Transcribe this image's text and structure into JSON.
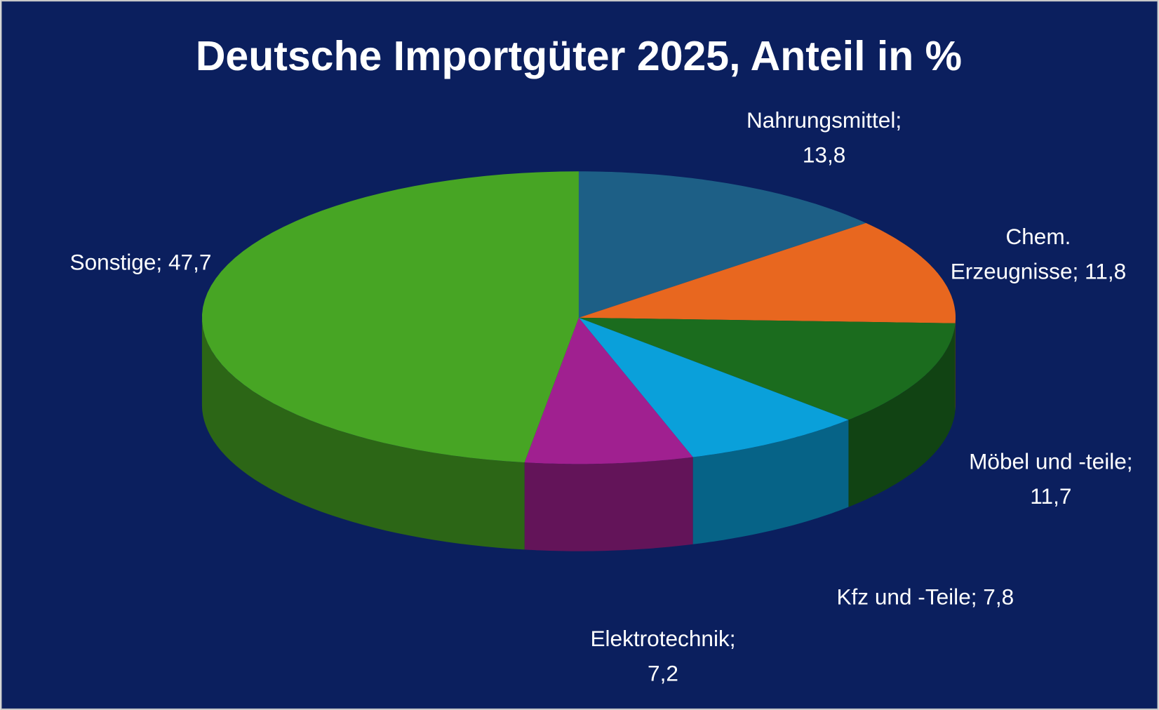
{
  "chart_data": {
    "type": "pie3d",
    "title": "Deutsche Importgüter 2025, Anteil in %",
    "values": [
      13.8,
      11.8,
      11.7,
      7.8,
      7.2,
      47.7
    ],
    "value_labels": [
      "Nahrungsmittel; 13,8",
      "Chem. Erzeugnisse; 11,8",
      "Möbel und -teile; 11,7",
      "Kfz und -Teile; 7,8",
      "Elektrotechnik; 7,2",
      "Sonstige; 47,7"
    ],
    "colors": [
      "#1d5f86",
      "#e8671f",
      "#1b6c1e",
      "#0aa0da",
      "#a02090",
      "#47a524"
    ]
  }
}
